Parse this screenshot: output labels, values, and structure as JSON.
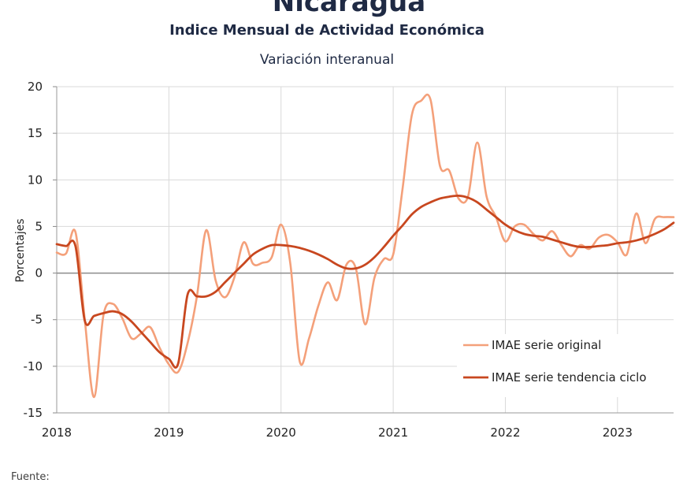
{
  "header": {
    "title": "Nicaragua",
    "subtitle": "Indice Mensual de  Actividad Económica"
  },
  "footer": {
    "source_label": "Fuente:"
  },
  "chart_data": {
    "type": "line",
    "title": "Variación interanual",
    "xlabel": "",
    "ylabel": "Porcentajes",
    "ylim": [
      -15,
      20
    ],
    "yticks": [
      -15,
      -10,
      -5,
      0,
      5,
      10,
      15,
      20
    ],
    "xlim": [
      2018,
      2023.5
    ],
    "xticks": [
      2018,
      2019,
      2020,
      2021,
      2022,
      2023
    ],
    "grid": {
      "vertical": true,
      "horizontal": true
    },
    "legend_position": "bottom-right",
    "series": [
      {
        "name": "IMAE serie original",
        "color": "#f4a07a",
        "x": [
          2018.0,
          2018.083,
          2018.167,
          2018.25,
          2018.333,
          2018.417,
          2018.5,
          2018.583,
          2018.667,
          2018.75,
          2018.833,
          2018.917,
          2019.0,
          2019.083,
          2019.167,
          2019.25,
          2019.333,
          2019.417,
          2019.5,
          2019.583,
          2019.667,
          2019.75,
          2019.833,
          2019.917,
          2020.0,
          2020.083,
          2020.167,
          2020.25,
          2020.333,
          2020.417,
          2020.5,
          2020.583,
          2020.667,
          2020.75,
          2020.833,
          2020.917,
          2021.0,
          2021.083,
          2021.167,
          2021.25,
          2021.333,
          2021.417,
          2021.5,
          2021.583,
          2021.667,
          2021.75,
          2021.833,
          2021.917,
          2022.0,
          2022.083,
          2022.167,
          2022.25,
          2022.333,
          2022.417,
          2022.5,
          2022.583,
          2022.667,
          2022.75,
          2022.833,
          2022.917,
          2023.0,
          2023.083,
          2023.167,
          2023.25,
          2023.333,
          2023.417,
          2023.5
        ],
        "values": [
          2.2,
          2.1,
          4.4,
          -5.0,
          -13.3,
          -4.5,
          -3.3,
          -4.8,
          -7.0,
          -6.5,
          -5.8,
          -8.0,
          -9.8,
          -10.6,
          -7.5,
          -2.5,
          4.6,
          -0.8,
          -2.6,
          -0.5,
          3.3,
          1.0,
          1.1,
          1.7,
          5.2,
          1.0,
          -9.5,
          -7.0,
          -3.5,
          -1.0,
          -2.9,
          0.9,
          0.5,
          -5.5,
          -0.5,
          1.5,
          2.0,
          9.0,
          17.0,
          18.5,
          18.6,
          11.5,
          11.0,
          8.0,
          8.2,
          14.0,
          8.2,
          6.0,
          3.4,
          5.0,
          5.2,
          4.2,
          3.5,
          4.5,
          3.0,
          1.8,
          3.0,
          2.6,
          3.8,
          4.1,
          3.3,
          2.0,
          6.4,
          3.2,
          5.8,
          6.0,
          6.0
        ]
      },
      {
        "name": "IMAE serie  tendencia ciclo",
        "color": "#c8471f",
        "x": [
          2018.0,
          2018.083,
          2018.167,
          2018.25,
          2018.333,
          2018.417,
          2018.5,
          2018.583,
          2018.667,
          2018.75,
          2018.833,
          2018.917,
          2019.0,
          2019.083,
          2019.167,
          2019.25,
          2019.333,
          2019.417,
          2019.5,
          2019.583,
          2019.667,
          2019.75,
          2019.833,
          2019.917,
          2020.0,
          2020.083,
          2020.167,
          2020.25,
          2020.333,
          2020.417,
          2020.5,
          2020.583,
          2020.667,
          2020.75,
          2020.833,
          2020.917,
          2021.0,
          2021.083,
          2021.167,
          2021.25,
          2021.333,
          2021.417,
          2021.5,
          2021.583,
          2021.667,
          2021.75,
          2021.833,
          2021.917,
          2022.0,
          2022.083,
          2022.167,
          2022.25,
          2022.333,
          2022.417,
          2022.5,
          2022.583,
          2022.667,
          2022.75,
          2022.833,
          2022.917,
          2023.0,
          2023.083,
          2023.167,
          2023.25,
          2023.333,
          2023.417,
          2023.5
        ],
        "values": [
          3.1,
          2.9,
          2.9,
          -5.1,
          -4.6,
          -4.3,
          -4.1,
          -4.4,
          -5.2,
          -6.3,
          -7.4,
          -8.5,
          -9.2,
          -9.7,
          -2.3,
          -2.5,
          -2.5,
          -2.0,
          -1.0,
          0.0,
          1.0,
          2.0,
          2.6,
          3.0,
          3.0,
          2.9,
          2.7,
          2.4,
          2.0,
          1.5,
          0.9,
          0.5,
          0.5,
          0.9,
          1.7,
          2.8,
          4.0,
          5.1,
          6.3,
          7.1,
          7.6,
          8.0,
          8.2,
          8.3,
          8.1,
          7.6,
          6.8,
          6.0,
          5.2,
          4.6,
          4.2,
          4.0,
          3.9,
          3.6,
          3.3,
          3.0,
          2.8,
          2.8,
          2.9,
          3.0,
          3.2,
          3.3,
          3.5,
          3.8,
          4.2,
          4.7,
          5.4
        ]
      }
    ]
  }
}
